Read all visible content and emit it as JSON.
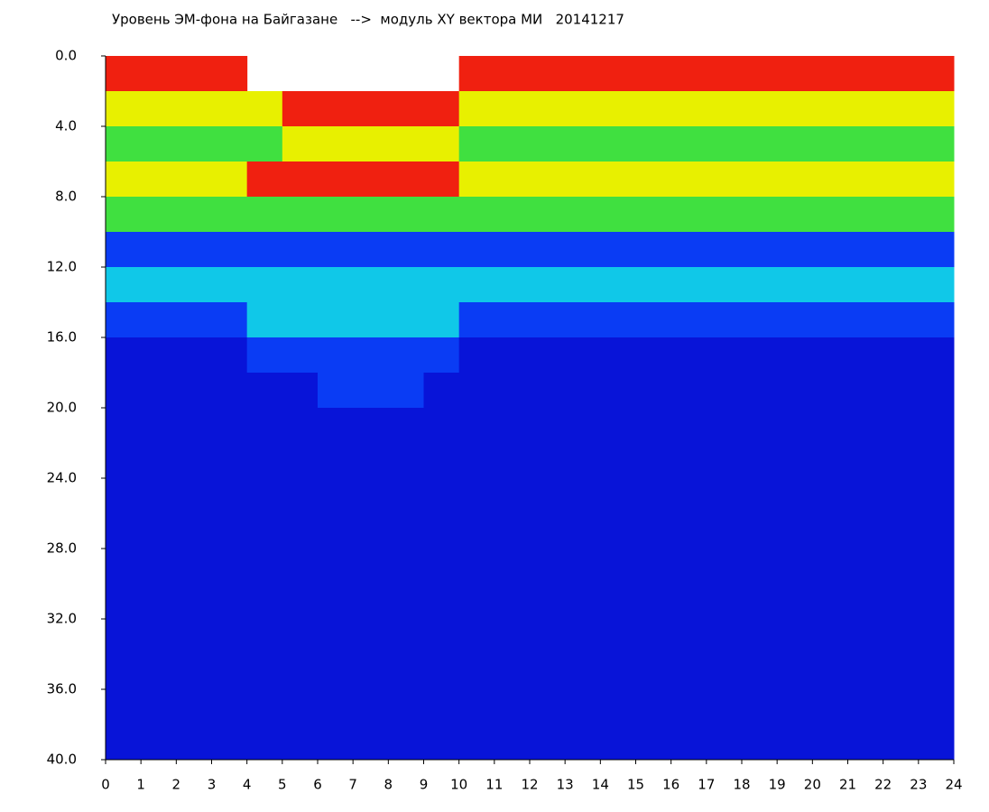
{
  "chart_data": {
    "type": "heatmap",
    "title": "Уровень ЭМ-фона на Байгазане   -->  модуль XY вектора МИ   20141217",
    "x": [
      0,
      1,
      2,
      3,
      4,
      5,
      6,
      7,
      8,
      9,
      10,
      11,
      12,
      13,
      14,
      15,
      16,
      17,
      18,
      19,
      20,
      21,
      22,
      23,
      24
    ],
    "y": [
      0,
      2,
      4,
      6,
      8,
      10,
      12,
      14,
      16,
      18,
      20,
      22,
      24,
      26,
      28,
      30,
      32,
      34,
      36,
      38,
      40
    ],
    "xlim": [
      0,
      24
    ],
    "xticks": [
      0,
      1,
      2,
      3,
      4,
      5,
      6,
      7,
      8,
      9,
      10,
      11,
      12,
      13,
      14,
      15,
      16,
      17,
      18,
      19,
      20,
      21,
      22,
      23,
      24
    ],
    "ylim": [
      0,
      40
    ],
    "y_inverted": true,
    "yticks": [
      {
        "value": 0,
        "label": "0.0"
      },
      {
        "value": 4,
        "label": "4.0"
      },
      {
        "value": 8,
        "label": "8.0"
      },
      {
        "value": 12,
        "label": "12.0"
      },
      {
        "value": 16,
        "label": "16.0"
      },
      {
        "value": 20,
        "label": "20.0"
      },
      {
        "value": 24,
        "label": "24.0"
      },
      {
        "value": 28,
        "label": "28.0"
      },
      {
        "value": 32,
        "label": "32.0"
      },
      {
        "value": 36,
        "label": "36.0"
      },
      {
        "value": 40,
        "label": "40.0"
      }
    ],
    "colorscale": [
      "#0814d8",
      "#0a3cf4",
      "#10c8e8",
      "#40e040",
      "#e8f000",
      "#f02010"
    ],
    "z": [
      [
        5,
        5,
        5,
        5,
        null,
        null,
        null,
        null,
        null,
        null,
        5,
        5,
        5,
        5,
        5,
        5,
        5,
        5,
        5,
        5,
        5,
        5,
        5,
        5
      ],
      [
        4,
        4,
        4,
        4,
        4,
        5,
        5,
        5,
        5,
        5,
        4,
        4,
        4,
        4,
        4,
        4,
        4,
        4,
        4,
        4,
        4,
        4,
        4,
        4
      ],
      [
        3,
        3,
        3,
        3,
        3,
        4,
        4,
        4,
        4,
        4,
        3,
        3,
        3,
        3,
        3,
        3,
        3,
        3,
        3,
        3,
        3,
        3,
        3,
        3
      ],
      [
        4,
        4,
        4,
        4,
        5,
        5,
        5,
        5,
        5,
        5,
        4,
        4,
        4,
        4,
        4,
        4,
        4,
        4,
        4,
        4,
        4,
        4,
        4,
        4
      ],
      [
        3,
        3,
        3,
        3,
        3,
        3,
        3,
        3,
        3,
        3,
        3,
        3,
        3,
        3,
        3,
        3,
        3,
        3,
        3,
        3,
        3,
        3,
        3,
        3
      ],
      [
        1,
        1,
        1,
        1,
        1,
        1,
        1,
        1,
        1,
        1,
        1,
        1,
        1,
        1,
        1,
        1,
        1,
        1,
        1,
        1,
        1,
        1,
        1,
        1
      ],
      [
        2,
        2,
        2,
        2,
        2,
        2,
        2,
        2,
        2,
        2,
        2,
        2,
        2,
        2,
        2,
        2,
        2,
        2,
        2,
        2,
        2,
        2,
        2,
        2
      ],
      [
        1,
        1,
        1,
        1,
        2,
        2,
        2,
        2,
        2,
        2,
        1,
        1,
        1,
        1,
        1,
        1,
        1,
        1,
        1,
        1,
        1,
        1,
        1,
        1
      ],
      [
        0,
        0,
        0,
        0,
        1,
        1,
        1,
        1,
        1,
        1,
        0,
        0,
        0,
        0,
        0,
        0,
        0,
        0,
        0,
        0,
        0,
        0,
        0,
        0
      ],
      [
        0,
        0,
        0,
        0,
        0,
        0,
        1,
        1,
        1,
        0,
        0,
        0,
        0,
        0,
        0,
        0,
        0,
        0,
        0,
        0,
        0,
        0,
        0,
        0
      ],
      [
        0,
        0,
        0,
        0,
        0,
        0,
        0,
        0,
        0,
        0,
        0,
        0,
        0,
        0,
        0,
        0,
        0,
        0,
        0,
        0,
        0,
        0,
        0,
        0
      ],
      [
        0,
        0,
        0,
        0,
        0,
        0,
        0,
        0,
        0,
        0,
        0,
        0,
        0,
        0,
        0,
        0,
        0,
        0,
        0,
        0,
        0,
        0,
        0,
        0
      ],
      [
        0,
        0,
        0,
        0,
        0,
        0,
        0,
        0,
        0,
        0,
        0,
        0,
        0,
        0,
        0,
        0,
        0,
        0,
        0,
        0,
        0,
        0,
        0,
        0
      ],
      [
        0,
        0,
        0,
        0,
        0,
        0,
        0,
        0,
        0,
        0,
        0,
        0,
        0,
        0,
        0,
        0,
        0,
        0,
        0,
        0,
        0,
        0,
        0,
        0
      ],
      [
        0,
        0,
        0,
        0,
        0,
        0,
        0,
        0,
        0,
        0,
        0,
        0,
        0,
        0,
        0,
        0,
        0,
        0,
        0,
        0,
        0,
        0,
        0,
        0
      ],
      [
        0,
        0,
        0,
        0,
        0,
        0,
        0,
        0,
        0,
        0,
        0,
        0,
        0,
        0,
        0,
        0,
        0,
        0,
        0,
        0,
        0,
        0,
        0,
        0
      ],
      [
        0,
        0,
        0,
        0,
        0,
        0,
        0,
        0,
        0,
        0,
        0,
        0,
        0,
        0,
        0,
        0,
        0,
        0,
        0,
        0,
        0,
        0,
        0,
        0
      ],
      [
        0,
        0,
        0,
        0,
        0,
        0,
        0,
        0,
        0,
        0,
        0,
        0,
        0,
        0,
        0,
        0,
        0,
        0,
        0,
        0,
        0,
        0,
        0,
        0
      ],
      [
        0,
        0,
        0,
        0,
        0,
        0,
        0,
        0,
        0,
        0,
        0,
        0,
        0,
        0,
        0,
        0,
        0,
        0,
        0,
        0,
        0,
        0,
        0,
        0
      ],
      [
        0,
        0,
        0,
        0,
        0,
        0,
        0,
        0,
        0,
        0,
        0,
        0,
        0,
        0,
        0,
        0,
        0,
        0,
        0,
        0,
        0,
        0,
        0,
        0
      ]
    ]
  }
}
